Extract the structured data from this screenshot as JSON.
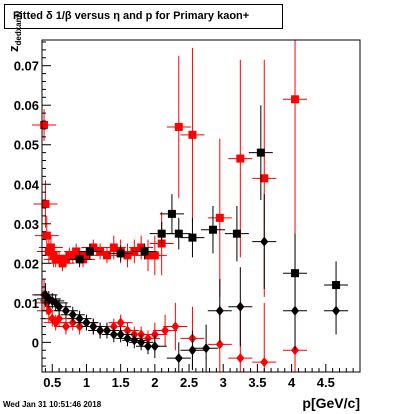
{
  "chart_data": {
    "type": "scatter",
    "title": "Fitted δ 1/β versus η and p for Primary kaon+",
    "xlabel": "p[GeV/c]",
    "ylabel_main": "z",
    "ylabel_sub": "dedxamv",
    "xlim": [
      0.35,
      5.0
    ],
    "ylim": [
      -0.0075,
      0.0765
    ],
    "xticks": [
      0.5,
      1,
      1.5,
      2,
      2.5,
      3,
      3.5,
      4,
      4.5
    ],
    "xtick_labels": [
      "0.5",
      "1",
      "1.5",
      "2",
      "2.5",
      "3",
      "3.5",
      "4",
      "4.5"
    ],
    "yticks": [
      0,
      0.01,
      0.02,
      0.03,
      0.04,
      0.05,
      0.06,
      0.07
    ],
    "ytick_labels": [
      "0",
      "0.01",
      "0.02",
      "0.03",
      "0.04",
      "0.05",
      "0.06",
      "0.07"
    ],
    "footer": "Wed Jan 31 10:51:46 2018",
    "series": [
      {
        "color": "#ff0000",
        "marker": "square",
        "points": [
          {
            "x": 0.38,
            "y": 0.055,
            "ey": 0.004
          },
          {
            "x": 0.4,
            "y": 0.035,
            "ey": 0.006
          },
          {
            "x": 0.42,
            "y": 0.027,
            "ey": 0.005
          },
          {
            "x": 0.45,
            "y": 0.023,
            "ey": 0.003
          },
          {
            "x": 0.48,
            "y": 0.024,
            "ey": 0.003
          },
          {
            "x": 0.52,
            "y": 0.022,
            "ey": 0.003
          },
          {
            "x": 0.55,
            "y": 0.021,
            "ey": 0.002
          },
          {
            "x": 0.6,
            "y": 0.021,
            "ey": 0.002
          },
          {
            "x": 0.65,
            "y": 0.02,
            "ey": 0.002
          },
          {
            "x": 0.7,
            "y": 0.021,
            "ey": 0.002
          },
          {
            "x": 0.75,
            "y": 0.022,
            "ey": 0.002
          },
          {
            "x": 0.8,
            "y": 0.022,
            "ey": 0.002
          },
          {
            "x": 0.85,
            "y": 0.023,
            "ey": 0.002
          },
          {
            "x": 0.9,
            "y": 0.022,
            "ey": 0.002
          },
          {
            "x": 0.95,
            "y": 0.021,
            "ey": 0.002
          },
          {
            "x": 1.0,
            "y": 0.022,
            "ey": 0.002
          },
          {
            "x": 1.05,
            "y": 0.023,
            "ey": 0.002
          },
          {
            "x": 1.1,
            "y": 0.024,
            "ey": 0.002
          },
          {
            "x": 1.2,
            "y": 0.023,
            "ey": 0.002
          },
          {
            "x": 1.3,
            "y": 0.022,
            "ey": 0.002
          },
          {
            "x": 1.4,
            "y": 0.024,
            "ey": 0.003
          },
          {
            "x": 1.5,
            "y": 0.023,
            "ey": 0.003
          },
          {
            "x": 1.6,
            "y": 0.022,
            "ey": 0.003
          },
          {
            "x": 1.7,
            "y": 0.023,
            "ey": 0.003
          },
          {
            "x": 1.8,
            "y": 0.024,
            "ey": 0.003
          },
          {
            "x": 1.9,
            "y": 0.022,
            "ey": 0.004
          },
          {
            "x": 2.0,
            "y": 0.022,
            "ey": 0.005
          },
          {
            "x": 2.1,
            "y": 0.025,
            "ey": 0.008
          },
          {
            "x": 2.35,
            "y": 0.0545,
            "ey": 0.018
          },
          {
            "x": 2.55,
            "y": 0.0525,
            "ey": 0.022
          },
          {
            "x": 2.95,
            "y": 0.0315,
            "ey": 0.02
          },
          {
            "x": 3.25,
            "y": 0.0465,
            "ey": 0.025
          },
          {
            "x": 3.6,
            "y": 0.0415,
            "ey": 0.03
          },
          {
            "x": 4.05,
            "y": 0.0615,
            "ey": 0.045
          }
        ]
      },
      {
        "color": "#000000",
        "marker": "square",
        "points": [
          {
            "x": 0.9,
            "y": 0.021,
            "ey": 0.002
          },
          {
            "x": 1.05,
            "y": 0.023,
            "ey": 0.002
          },
          {
            "x": 1.5,
            "y": 0.0225,
            "ey": 0.002
          },
          {
            "x": 1.85,
            "y": 0.023,
            "ey": 0.002
          },
          {
            "x": 2.1,
            "y": 0.0275,
            "ey": 0.003
          },
          {
            "x": 2.25,
            "y": 0.0325,
            "ey": 0.005
          },
          {
            "x": 2.35,
            "y": 0.0275,
            "ey": 0.004
          },
          {
            "x": 2.55,
            "y": 0.0265,
            "ey": 0.005
          },
          {
            "x": 2.85,
            "y": 0.0285,
            "ey": 0.006
          },
          {
            "x": 3.2,
            "y": 0.0275,
            "ey": 0.007
          },
          {
            "x": 3.55,
            "y": 0.048,
            "ey": 0.012
          },
          {
            "x": 4.05,
            "y": 0.0175,
            "ey": 0.01
          },
          {
            "x": 4.65,
            "y": 0.0145,
            "ey": 0.006
          }
        ]
      },
      {
        "color": "#ff0000",
        "marker": "diamond",
        "points": [
          {
            "x": 0.38,
            "y": 0.012,
            "ey": 0.004
          },
          {
            "x": 0.42,
            "y": 0.01,
            "ey": 0.003
          },
          {
            "x": 0.45,
            "y": 0.008,
            "ey": 0.003
          },
          {
            "x": 0.5,
            "y": 0.006,
            "ey": 0.002
          },
          {
            "x": 0.55,
            "y": 0.005,
            "ey": 0.002
          },
          {
            "x": 0.6,
            "y": 0.006,
            "ey": 0.002
          },
          {
            "x": 0.7,
            "y": 0.004,
            "ey": 0.002
          },
          {
            "x": 0.8,
            "y": 0.005,
            "ey": 0.002
          },
          {
            "x": 0.9,
            "y": 0.004,
            "ey": 0.002
          },
          {
            "x": 1.0,
            "y": 0.005,
            "ey": 0.002
          },
          {
            "x": 1.1,
            "y": 0.004,
            "ey": 0.002
          },
          {
            "x": 1.2,
            "y": 0.003,
            "ey": 0.002
          },
          {
            "x": 1.3,
            "y": 0.003,
            "ey": 0.002
          },
          {
            "x": 1.4,
            "y": 0.004,
            "ey": 0.002
          },
          {
            "x": 1.5,
            "y": 0.005,
            "ey": 0.002
          },
          {
            "x": 1.6,
            "y": 0.003,
            "ey": 0.002
          },
          {
            "x": 1.7,
            "y": 0.002,
            "ey": 0.002
          },
          {
            "x": 1.8,
            "y": 0.002,
            "ey": 0.002
          },
          {
            "x": 1.9,
            "y": 0.001,
            "ey": 0.002
          },
          {
            "x": 2.0,
            "y": 0.002,
            "ey": 0.003
          },
          {
            "x": 2.15,
            "y": 0.003,
            "ey": 0.004
          },
          {
            "x": 2.3,
            "y": 0.004,
            "ey": 0.006
          },
          {
            "x": 2.55,
            "y": 0.001,
            "ey": 0.008
          },
          {
            "x": 2.95,
            "y": -0.0005,
            "ey": 0.01
          },
          {
            "x": 3.25,
            "y": -0.004,
            "ey": 0.012
          },
          {
            "x": 3.6,
            "y": -0.005,
            "ey": 0.015
          },
          {
            "x": 4.05,
            "y": -0.002,
            "ey": 0.02
          }
        ]
      },
      {
        "color": "#000000",
        "marker": "diamond",
        "points": [
          {
            "x": 0.4,
            "y": 0.012,
            "ey": 0.003
          },
          {
            "x": 0.45,
            "y": 0.011,
            "ey": 0.002
          },
          {
            "x": 0.5,
            "y": 0.0105,
            "ey": 0.002
          },
          {
            "x": 0.55,
            "y": 0.01,
            "ey": 0.002
          },
          {
            "x": 0.6,
            "y": 0.009,
            "ey": 0.002
          },
          {
            "x": 0.7,
            "y": 0.008,
            "ey": 0.002
          },
          {
            "x": 0.8,
            "y": 0.007,
            "ey": 0.002
          },
          {
            "x": 0.9,
            "y": 0.006,
            "ey": 0.002
          },
          {
            "x": 1.0,
            "y": 0.005,
            "ey": 0.002
          },
          {
            "x": 1.1,
            "y": 0.004,
            "ey": 0.002
          },
          {
            "x": 1.2,
            "y": 0.003,
            "ey": 0.002
          },
          {
            "x": 1.3,
            "y": 0.003,
            "ey": 0.002
          },
          {
            "x": 1.4,
            "y": 0.002,
            "ey": 0.002
          },
          {
            "x": 1.5,
            "y": 0.002,
            "ey": 0.002
          },
          {
            "x": 1.6,
            "y": 0.001,
            "ey": 0.002
          },
          {
            "x": 1.7,
            "y": 0.0005,
            "ey": 0.002
          },
          {
            "x": 1.8,
            "y": 0.0,
            "ey": 0.002
          },
          {
            "x": 1.9,
            "y": -0.001,
            "ey": 0.002
          },
          {
            "x": 2.0,
            "y": -0.001,
            "ey": 0.003
          },
          {
            "x": 2.35,
            "y": -0.004,
            "ey": 0.004
          },
          {
            "x": 2.55,
            "y": -0.002,
            "ey": 0.005
          },
          {
            "x": 2.75,
            "y": -0.0015,
            "ey": 0.006
          },
          {
            "x": 2.95,
            "y": 0.008,
            "ey": 0.008
          },
          {
            "x": 3.25,
            "y": 0.009,
            "ey": 0.01
          },
          {
            "x": 3.6,
            "y": 0.0255,
            "ey": 0.012
          },
          {
            "x": 4.05,
            "y": 0.008,
            "ey": 0.01
          },
          {
            "x": 4.65,
            "y": 0.008,
            "ey": 0.006
          }
        ]
      }
    ]
  }
}
